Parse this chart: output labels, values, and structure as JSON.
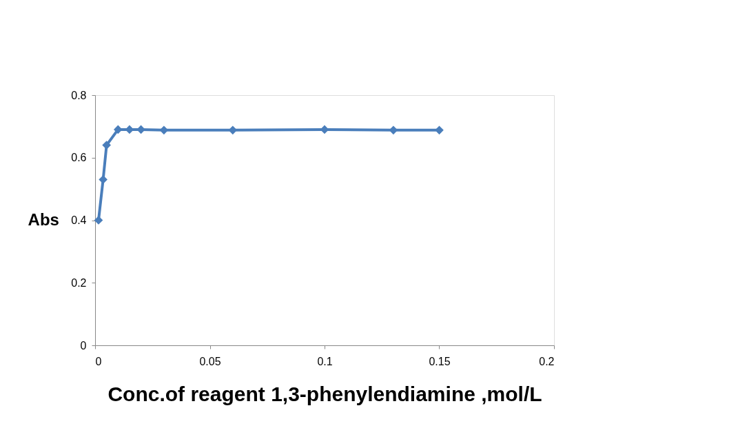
{
  "chart_data": {
    "type": "line",
    "xlabel": "Conc.of reagent 1,3-phenylendiamine ,mol/L",
    "ylabel": "Abs",
    "x": [
      0.0015,
      0.0035,
      0.005,
      0.01,
      0.015,
      0.02,
      0.03,
      0.06,
      0.1,
      0.13,
      0.15
    ],
    "series": [
      {
        "color": "#4a7ebb",
        "values": [
          0.4,
          0.53,
          0.64,
          0.69,
          0.69,
          0.69,
          0.688,
          0.688,
          0.69,
          0.688,
          0.688
        ]
      }
    ],
    "xlim": [
      0,
      0.2
    ],
    "xticks": [
      0,
      0.05,
      0.1,
      0.15,
      0.2
    ],
    "ylim": [
      0,
      0.8
    ],
    "yticks": [
      0,
      0.2,
      0.4,
      0.6,
      0.8
    ],
    "grid": false,
    "legend": false,
    "marker": "diamond",
    "line_style": "solid"
  }
}
